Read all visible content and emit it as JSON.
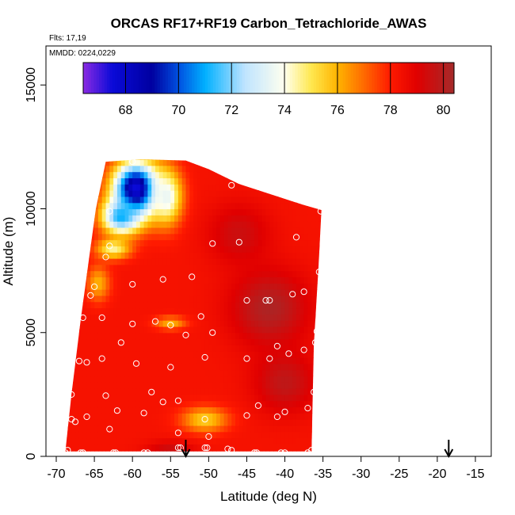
{
  "chart_data": {
    "type": "heatmap",
    "title": "ORCAS RF17+RF19 Carbon_Tetrachloride_AWAS",
    "flights_label": "Flts: 17,19",
    "date_label": "MMDD: 0224,0229",
    "xlabel": "Latitude (deg N)",
    "ylabel": "Altitude (m)",
    "xlim": [
      -70,
      -15
    ],
    "ylim": [
      0,
      16000
    ],
    "x_ticks": [
      -70,
      -65,
      -60,
      -55,
      -50,
      -45,
      -40,
      -35,
      -30,
      -25,
      -20,
      -15
    ],
    "x_tick_labels": [
      "-70",
      "-65",
      "-60",
      "-55",
      "-50",
      "-45",
      "-40",
      "-35",
      "-30",
      "-25",
      "-20",
      "-15"
    ],
    "y_ticks": [
      0,
      5000,
      10000,
      15000
    ],
    "y_tick_labels": [
      "0",
      "5000",
      "10000",
      "15000"
    ],
    "colorbar": {
      "range": [
        66.4,
        80.4
      ],
      "ticks": [
        68,
        70,
        72,
        74,
        76,
        78,
        80
      ],
      "tick_labels": [
        "68",
        "70",
        "72",
        "74",
        "76",
        "78",
        "80"
      ],
      "stops": [
        {
          "value": 66.4,
          "color": "#8b2be2"
        },
        {
          "value": 67.5,
          "color": "#0a0ad8"
        },
        {
          "value": 69.0,
          "color": "#0000a0"
        },
        {
          "value": 70.0,
          "color": "#0050e0"
        },
        {
          "value": 71.0,
          "color": "#00b0ff"
        },
        {
          "value": 72.5,
          "color": "#bfe4ff"
        },
        {
          "value": 74.0,
          "color": "#ffffee"
        },
        {
          "value": 75.0,
          "color": "#ffe850"
        },
        {
          "value": 76.0,
          "color": "#ffb400"
        },
        {
          "value": 77.0,
          "color": "#ff6a00"
        },
        {
          "value": 78.0,
          "color": "#ff1a00"
        },
        {
          "value": 79.0,
          "color": "#e00000"
        },
        {
          "value": 80.4,
          "color": "#a52a2a"
        }
      ]
    },
    "region": {
      "top_edge": [
        {
          "lat": -63.5,
          "alt": 11900
        },
        {
          "lat": -59.0,
          "alt": 12000
        },
        {
          "lat": -53.0,
          "alt": 11950
        },
        {
          "lat": -50.0,
          "alt": 11600
        },
        {
          "lat": -46.0,
          "alt": 11000
        },
        {
          "lat": -41.0,
          "alt": 10500
        },
        {
          "lat": -38.0,
          "alt": 10200
        },
        {
          "lat": -35.2,
          "alt": 9950
        }
      ],
      "right_edge": [
        {
          "lat": -35.2,
          "alt": 9950
        },
        {
          "lat": -35.6,
          "alt": 7600
        },
        {
          "lat": -36.2,
          "alt": 4500
        },
        {
          "lat": -36.5,
          "alt": 200
        }
      ],
      "left_edge": [
        {
          "lat": -68.8,
          "alt": 200
        },
        {
          "lat": -68.0,
          "alt": 2500
        },
        {
          "lat": -66.8,
          "alt": 5500
        },
        {
          "lat": -65.7,
          "alt": 8000
        },
        {
          "lat": -64.8,
          "alt": 10000
        },
        {
          "lat": -63.5,
          "alt": 11900
        }
      ]
    },
    "field_features": [
      {
        "lat": -59.5,
        "alt": 10800,
        "value": 67.2,
        "sx": 3.0,
        "sy": 1100
      },
      {
        "lat": -61.5,
        "alt": 9700,
        "value": 71.0,
        "sx": 2.5,
        "sy": 700
      },
      {
        "lat": -55.5,
        "alt": 10500,
        "value": 73.5,
        "sx": 2.0,
        "sy": 1100
      },
      {
        "lat": -62.5,
        "alt": 8400,
        "value": 74.5,
        "sx": 2.2,
        "sy": 400
      },
      {
        "lat": -64.5,
        "alt": 7000,
        "value": 76.0,
        "sx": 1.5,
        "sy": 700
      },
      {
        "lat": -50.5,
        "alt": 1500,
        "value": 75.5,
        "sx": 3.0,
        "sy": 500
      },
      {
        "lat": -55.0,
        "alt": 5400,
        "value": 76.0,
        "sx": 2.0,
        "sy": 250
      },
      {
        "lat": -42.0,
        "alt": 6000,
        "value": 80.2,
        "sx": 5.0,
        "sy": 1500
      },
      {
        "lat": -40.0,
        "alt": 3000,
        "value": 79.8,
        "sx": 4.0,
        "sy": 1200
      },
      {
        "lat": -46.0,
        "alt": 9000,
        "value": 79.5,
        "sx": 4.0,
        "sy": 1200
      },
      {
        "lat": -55.0,
        "alt": 200,
        "value": 79.6,
        "sx": 3.0,
        "sy": 400
      }
    ],
    "field_base_value": 78.3,
    "sample_points": [
      {
        "lat": -60.0,
        "alt": 11900
      },
      {
        "lat": -51.0,
        "alt": 11900
      },
      {
        "lat": -47.0,
        "alt": 10950
      },
      {
        "lat": -63.0,
        "alt": 9900
      },
      {
        "lat": -35.3,
        "alt": 9900
      },
      {
        "lat": -38.5,
        "alt": 8850
      },
      {
        "lat": -49.5,
        "alt": 8600
      },
      {
        "lat": -46.0,
        "alt": 8650
      },
      {
        "lat": -63.0,
        "alt": 8500
      },
      {
        "lat": -63.5,
        "alt": 8050
      },
      {
        "lat": -35.5,
        "alt": 7450
      },
      {
        "lat": -52.2,
        "alt": 7250
      },
      {
        "lat": -56.0,
        "alt": 7150
      },
      {
        "lat": -60.0,
        "alt": 6950
      },
      {
        "lat": -65.0,
        "alt": 6850
      },
      {
        "lat": -65.5,
        "alt": 6500
      },
      {
        "lat": -37.5,
        "alt": 6650
      },
      {
        "lat": -39.0,
        "alt": 6550
      },
      {
        "lat": -45.0,
        "alt": 6300
      },
      {
        "lat": -42.5,
        "alt": 6300
      },
      {
        "lat": -42.0,
        "alt": 6300
      },
      {
        "lat": -51.0,
        "alt": 5650
      },
      {
        "lat": -66.5,
        "alt": 5600
      },
      {
        "lat": -64.0,
        "alt": 5600
      },
      {
        "lat": -57.0,
        "alt": 5450
      },
      {
        "lat": -55.0,
        "alt": 5300
      },
      {
        "lat": -60.0,
        "alt": 5350
      },
      {
        "lat": -35.8,
        "alt": 5050
      },
      {
        "lat": -49.5,
        "alt": 5000
      },
      {
        "lat": -53.0,
        "alt": 4900
      },
      {
        "lat": -61.5,
        "alt": 4600
      },
      {
        "lat": -41.0,
        "alt": 4450
      },
      {
        "lat": -36.0,
        "alt": 4600
      },
      {
        "lat": -37.5,
        "alt": 4300
      },
      {
        "lat": -39.5,
        "alt": 4150
      },
      {
        "lat": -64.0,
        "alt": 3950
      },
      {
        "lat": -50.5,
        "alt": 4000
      },
      {
        "lat": -45.0,
        "alt": 3950
      },
      {
        "lat": -42.0,
        "alt": 3950
      },
      {
        "lat": -67.0,
        "alt": 3850
      },
      {
        "lat": -66.0,
        "alt": 3800
      },
      {
        "lat": -59.5,
        "alt": 3750
      },
      {
        "lat": -55.0,
        "alt": 3600
      },
      {
        "lat": -36.2,
        "alt": 2600
      },
      {
        "lat": -57.5,
        "alt": 2600
      },
      {
        "lat": -68.0,
        "alt": 2500
      },
      {
        "lat": -63.5,
        "alt": 2450
      },
      {
        "lat": -56.0,
        "alt": 2200
      },
      {
        "lat": -54.0,
        "alt": 2250
      },
      {
        "lat": -43.5,
        "alt": 2050
      },
      {
        "lat": -37.0,
        "alt": 1950
      },
      {
        "lat": -62.0,
        "alt": 1850
      },
      {
        "lat": -58.5,
        "alt": 1750
      },
      {
        "lat": -45.0,
        "alt": 1650
      },
      {
        "lat": -41.0,
        "alt": 1600
      },
      {
        "lat": -40.0,
        "alt": 1800
      },
      {
        "lat": -66.0,
        "alt": 1600
      },
      {
        "lat": -68.0,
        "alt": 1500
      },
      {
        "lat": -67.5,
        "alt": 1400
      },
      {
        "lat": -50.5,
        "alt": 1500
      },
      {
        "lat": -63.0,
        "alt": 1100
      },
      {
        "lat": -54.0,
        "alt": 950
      },
      {
        "lat": -50.0,
        "alt": 800
      },
      {
        "lat": -68.5,
        "alt": 250
      },
      {
        "lat": -68.8,
        "alt": 150
      },
      {
        "lat": -66.8,
        "alt": 150
      },
      {
        "lat": -66.5,
        "alt": 150
      },
      {
        "lat": -62.5,
        "alt": 150
      },
      {
        "lat": -62.2,
        "alt": 150
      },
      {
        "lat": -58.5,
        "alt": 150
      },
      {
        "lat": -58.0,
        "alt": 150
      },
      {
        "lat": -54.0,
        "alt": 350
      },
      {
        "lat": -53.7,
        "alt": 350
      },
      {
        "lat": -50.5,
        "alt": 350
      },
      {
        "lat": -50.2,
        "alt": 350
      },
      {
        "lat": -47.5,
        "alt": 300
      },
      {
        "lat": -47.0,
        "alt": 250
      },
      {
        "lat": -44.0,
        "alt": 150
      },
      {
        "lat": -43.7,
        "alt": 150
      },
      {
        "lat": -40.5,
        "alt": 150
      },
      {
        "lat": -40.0,
        "alt": 150
      },
      {
        "lat": -37.0,
        "alt": 150
      },
      {
        "lat": -36.5,
        "alt": 250
      }
    ],
    "arrow_markers": [
      {
        "lat": -53.0
      },
      {
        "lat": -18.5
      }
    ]
  }
}
